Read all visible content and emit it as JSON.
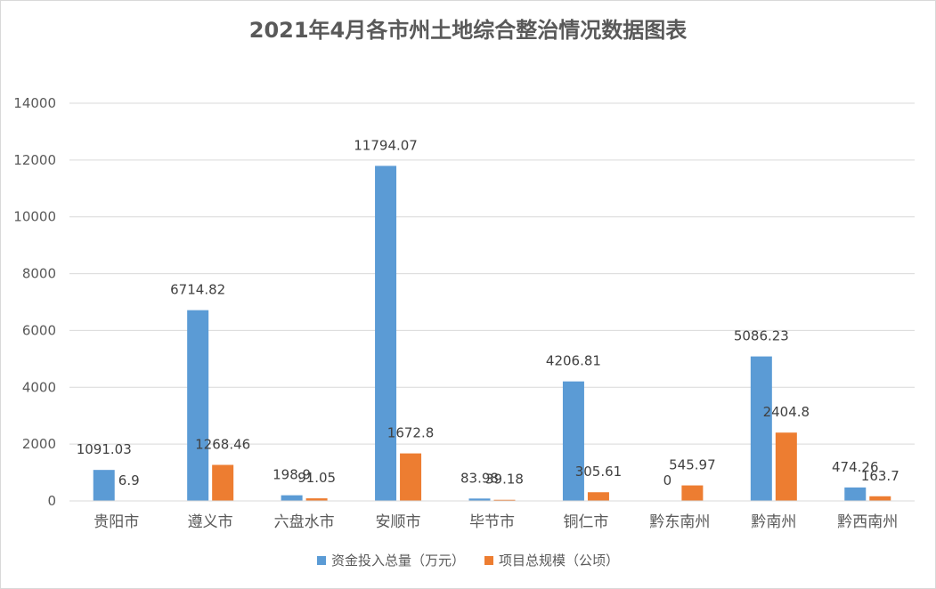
{
  "chart_data": {
    "type": "bar",
    "title": "2021年4月各市州土地综合整治情况数据图表",
    "categories": [
      "贵阳市",
      "遵义市",
      "六盘水市",
      "安顺市",
      "毕节市",
      "铜仁市",
      "黔东南州",
      "黔南州",
      "黔西南州"
    ],
    "series": [
      {
        "name": "资金投入总量（万元）",
        "color": "#5b9bd5",
        "values": [
          1091.03,
          6714.82,
          198.9,
          11794.07,
          83.98,
          4206.81,
          0,
          5086.23,
          474.26
        ],
        "labels": [
          "1091.03",
          "6714.82",
          "198.9",
          "11794.07",
          "83.98",
          "4206.81",
          "0",
          "5086.23",
          "474.26"
        ]
      },
      {
        "name": "项目总规模（公顷）",
        "color": "#ed7d31",
        "values": [
          6.9,
          1268.46,
          91.05,
          1672.8,
          39.18,
          305.61,
          545.97,
          2404.8,
          163.7
        ],
        "labels": [
          "6.9",
          "1268.46",
          "91.05",
          "1672.8",
          "39.18",
          "305.61",
          "545.97",
          "2404.8",
          "163.7"
        ]
      }
    ],
    "yticks": [
      "0",
      "2000",
      "4000",
      "6000",
      "8000",
      "10000",
      "12000",
      "14000"
    ],
    "ylim": [
      0,
      14000
    ],
    "grid": true,
    "legend_position": "bottom"
  }
}
